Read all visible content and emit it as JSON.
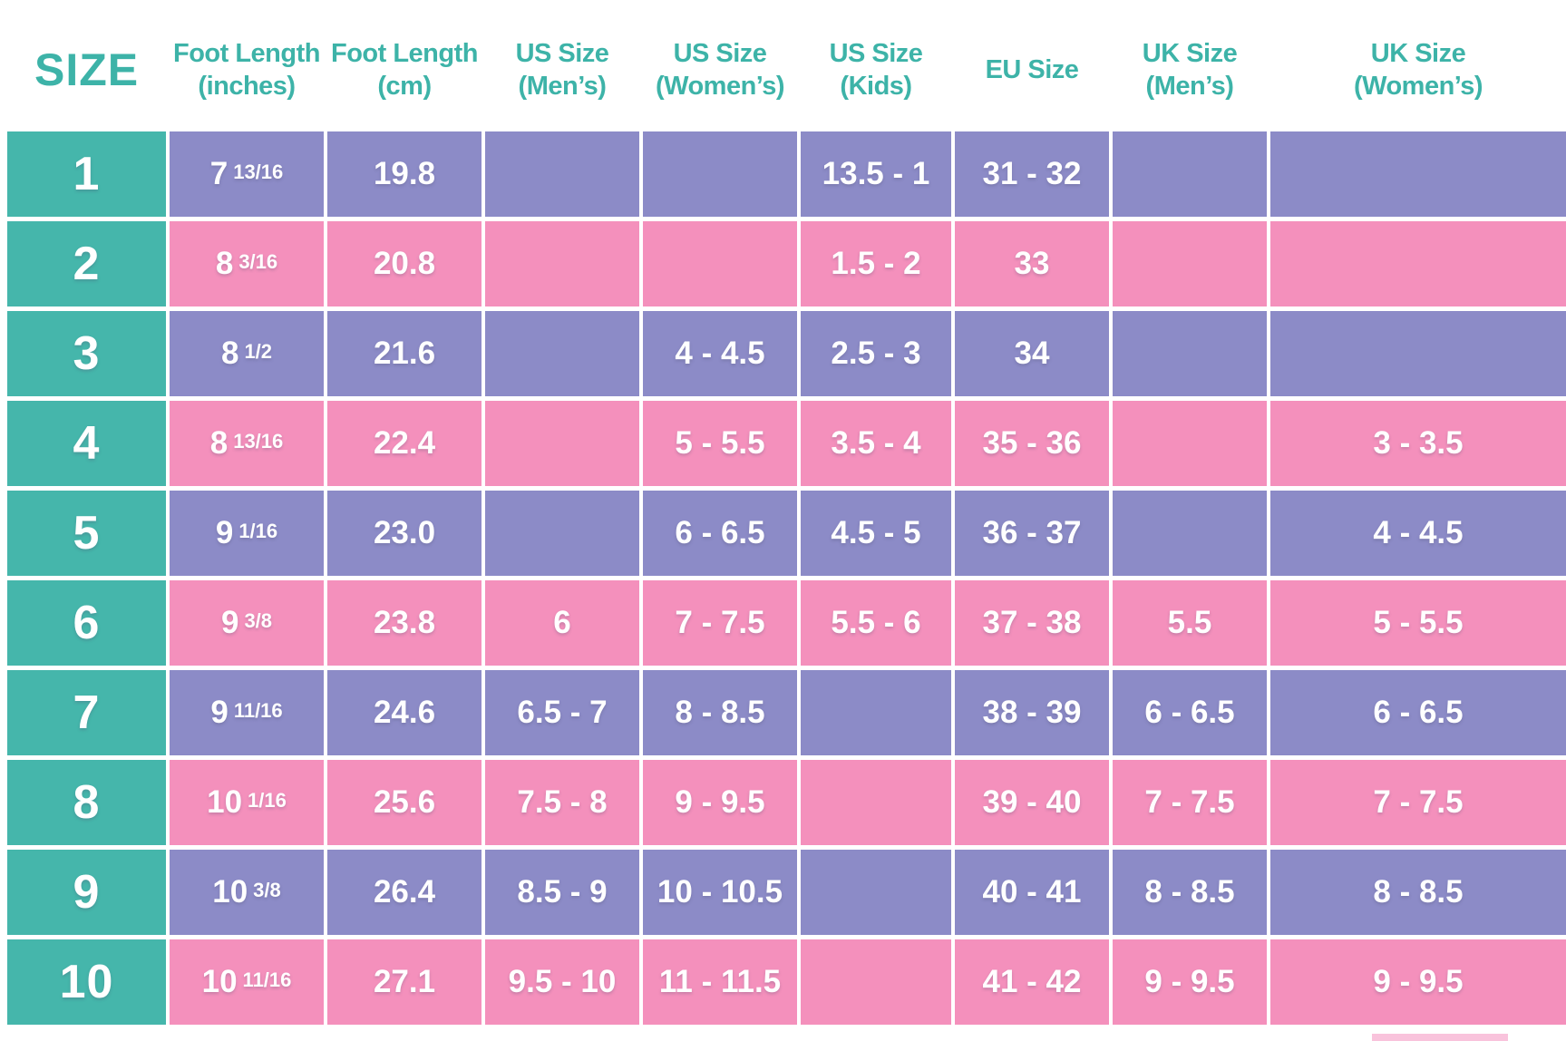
{
  "chart_data": {
    "type": "table",
    "columns": [
      {
        "label": "SIZE",
        "sub": ""
      },
      {
        "label": "Foot Length",
        "sub": "(inches)"
      },
      {
        "label": "Foot Length",
        "sub": "(cm)"
      },
      {
        "label": "US Size",
        "sub": "(Men’s)"
      },
      {
        "label": "US Size",
        "sub": "(Women’s)"
      },
      {
        "label": "US Size",
        "sub": "(Kids)"
      },
      {
        "label": "EU Size",
        "sub": ""
      },
      {
        "label": "UK Size",
        "sub": "(Men’s)"
      },
      {
        "label": "UK Size",
        "sub": "(Women’s)"
      }
    ],
    "rows": [
      {
        "size": "1",
        "inches_whole": "7",
        "inches_frac": "13/16",
        "cm": "19.8",
        "us_mens": "",
        "us_womens": "",
        "us_kids": "13.5 - 1",
        "eu": "31 - 32",
        "uk_mens": "",
        "uk_womens": ""
      },
      {
        "size": "2",
        "inches_whole": "8",
        "inches_frac": "3/16",
        "cm": "20.8",
        "us_mens": "",
        "us_womens": "",
        "us_kids": "1.5 - 2",
        "eu": "33",
        "uk_mens": "",
        "uk_womens": ""
      },
      {
        "size": "3",
        "inches_whole": "8",
        "inches_frac": "1/2",
        "cm": "21.6",
        "us_mens": "",
        "us_womens": "4 - 4.5",
        "us_kids": "2.5 - 3",
        "eu": "34",
        "uk_mens": "",
        "uk_womens": ""
      },
      {
        "size": "4",
        "inches_whole": "8",
        "inches_frac": "13/16",
        "cm": "22.4",
        "us_mens": "",
        "us_womens": "5 - 5.5",
        "us_kids": "3.5 - 4",
        "eu": "35 - 36",
        "uk_mens": "",
        "uk_womens": "3 - 3.5"
      },
      {
        "size": "5",
        "inches_whole": "9",
        "inches_frac": "1/16",
        "cm": "23.0",
        "us_mens": "",
        "us_womens": "6 - 6.5",
        "us_kids": "4.5 - 5",
        "eu": "36 - 37",
        "uk_mens": "",
        "uk_womens": "4 - 4.5"
      },
      {
        "size": "6",
        "inches_whole": "9",
        "inches_frac": "3/8",
        "cm": "23.8",
        "us_mens": "6",
        "us_womens": "7 - 7.5",
        "us_kids": "5.5 - 6",
        "eu": "37 - 38",
        "uk_mens": "5.5",
        "uk_womens": "5 - 5.5"
      },
      {
        "size": "7",
        "inches_whole": "9",
        "inches_frac": "11/16",
        "cm": "24.6",
        "us_mens": "6.5 - 7",
        "us_womens": "8 - 8.5",
        "us_kids": "",
        "eu": "38 - 39",
        "uk_mens": "6 - 6.5",
        "uk_womens": "6 - 6.5"
      },
      {
        "size": "8",
        "inches_whole": "10",
        "inches_frac": "1/16",
        "cm": "25.6",
        "us_mens": "7.5 - 8",
        "us_womens": "9 - 9.5",
        "us_kids": "",
        "eu": "39 - 40",
        "uk_mens": "7 - 7.5",
        "uk_womens": "7 - 7.5"
      },
      {
        "size": "9",
        "inches_whole": "10",
        "inches_frac": "3/8",
        "cm": "26.4",
        "us_mens": "8.5 - 9",
        "us_womens": "10 - 10.5",
        "us_kids": "",
        "eu": "40 - 41",
        "uk_mens": "8 - 8.5",
        "uk_womens": "8 - 8.5"
      },
      {
        "size": "10",
        "inches_whole": "10",
        "inches_frac": "11/16",
        "cm": "27.1",
        "us_mens": "9.5 - 10",
        "us_womens": "11 - 11.5",
        "us_kids": "",
        "eu": "41 - 42",
        "uk_mens": "9 - 9.5",
        "uk_womens": "9 - 9.5"
      }
    ]
  },
  "colors": {
    "teal": "#45b6ab",
    "purple": "#8c8bc7",
    "pink": "#f490bc",
    "header_text": "#3db3a8",
    "cell_text": "#ffffff",
    "background": "#ffffff",
    "corner_sliver": "#f9c3dc"
  }
}
